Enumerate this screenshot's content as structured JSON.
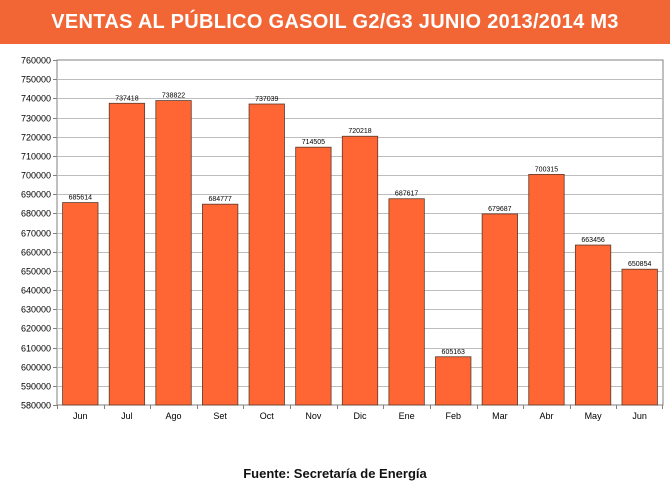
{
  "header": {
    "title": "VENTAS AL PÚBLICO GASOIL G2/G3 JUNIO 2013/2014 M3"
  },
  "footer": {
    "source": "Fuente: Secretaría de Energía"
  },
  "colors": {
    "bar": "#ff6633",
    "banner": "#f26635",
    "grid": "#bdbdbd",
    "frame": "#808080"
  },
  "chart_data": {
    "type": "bar",
    "title": "VENTAS AL PÚBLICO GASOIL G2/G3 JUNIO 2013/2014 M3",
    "xlabel": "",
    "ylabel": "",
    "ylim": [
      580000,
      760000
    ],
    "ytick_step": 10000,
    "grid": true,
    "categories": [
      "Jun",
      "Jul",
      "Ago",
      "Set",
      "Oct",
      "Nov",
      "Dic",
      "Ene",
      "Feb",
      "Mar",
      "Abr",
      "May",
      "Jun"
    ],
    "values": [
      685614,
      737418,
      738822,
      684777,
      737039,
      714505,
      720218,
      687617,
      605163,
      679687,
      700315,
      663456,
      650854
    ],
    "data_labels": [
      "685614",
      "737418",
      "738822",
      "684777",
      "737039",
      "714505",
      "720218",
      "687617",
      "605163",
      "679687",
      "700315",
      "663456",
      "650854"
    ]
  }
}
